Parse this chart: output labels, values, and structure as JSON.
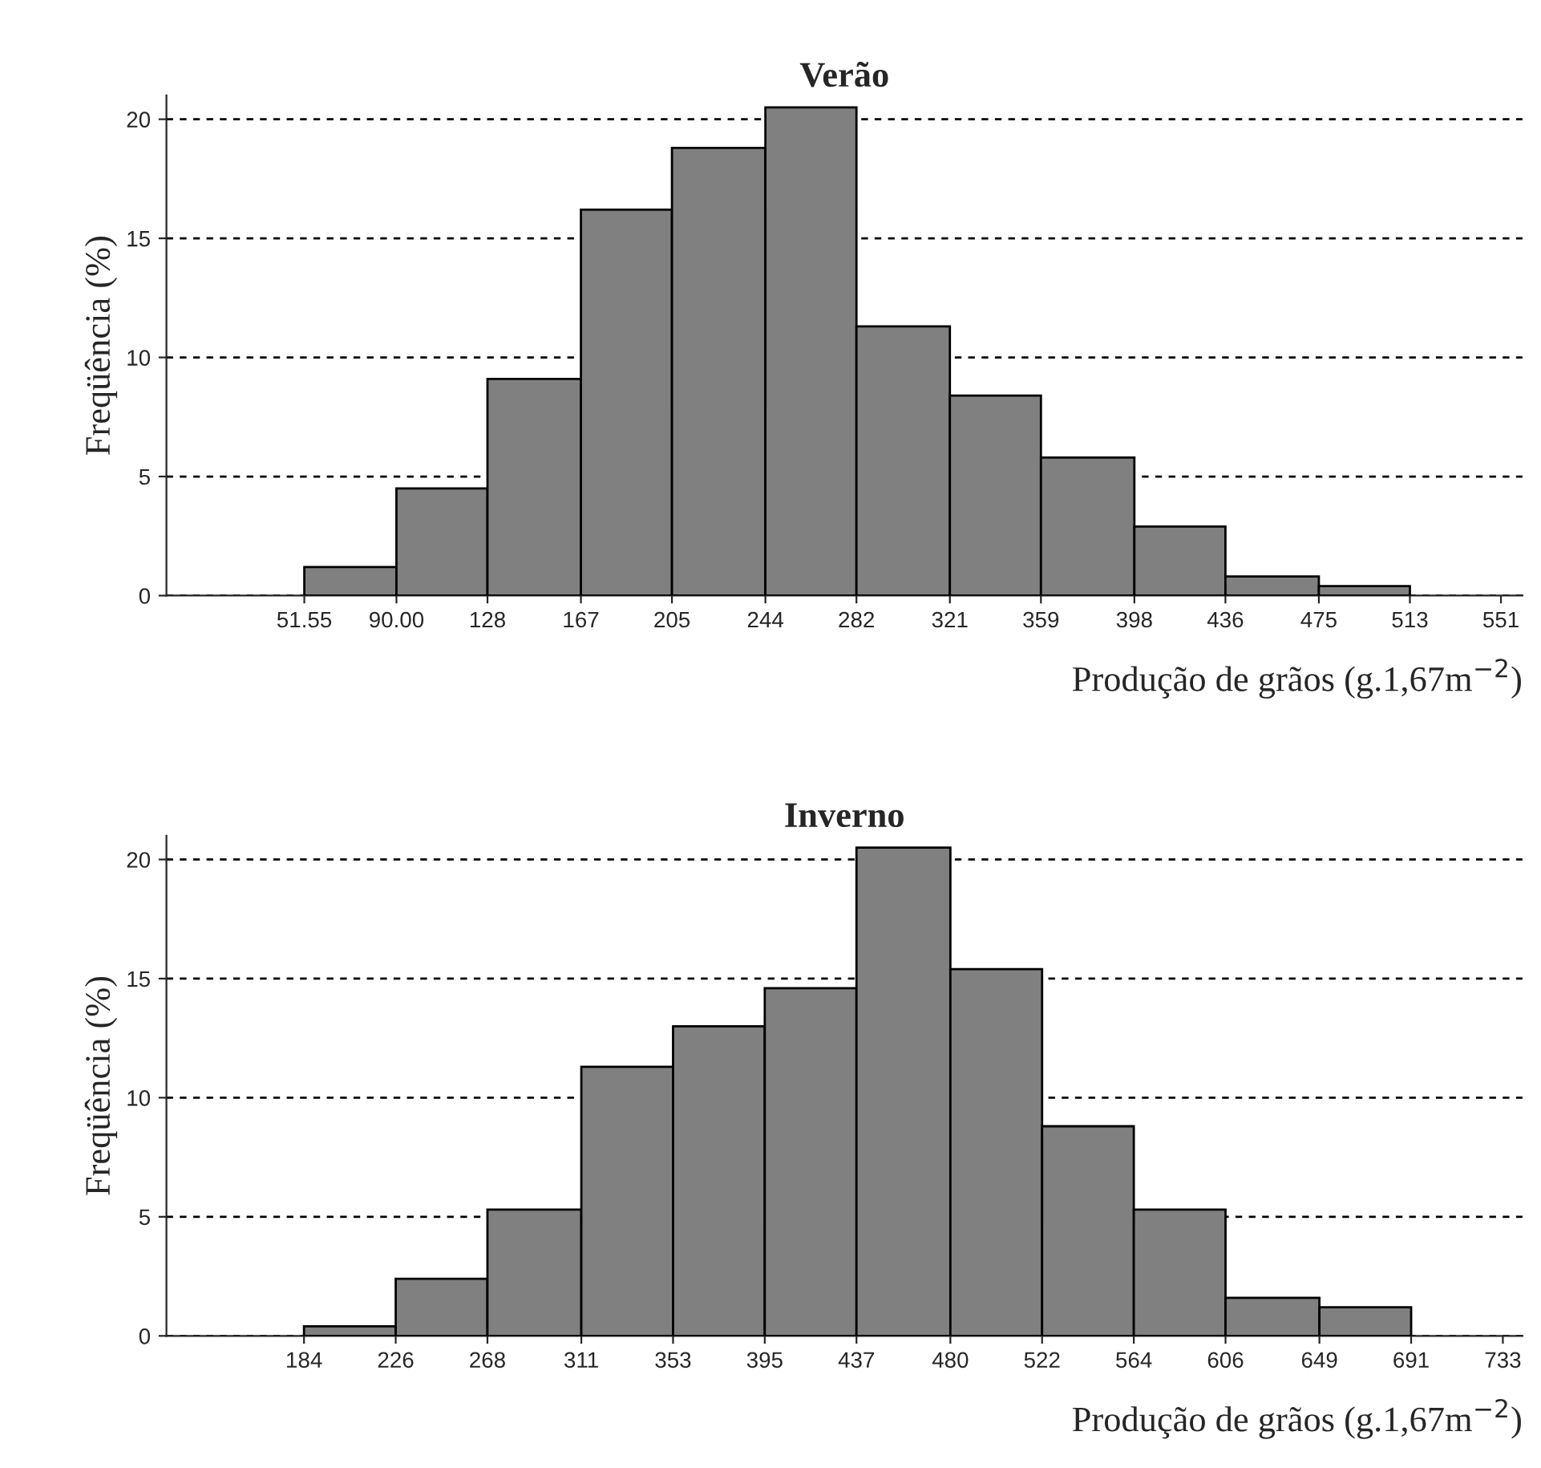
{
  "chart_data": [
    {
      "type": "histogram",
      "title": "Verão",
      "xlabel": "Produção de grãos (g.1,67m$^{−2}$)",
      "ylabel": "Freqüência (%)",
      "bins": [
        51.55,
        90.0,
        128,
        167,
        205,
        244,
        282,
        321,
        359,
        398,
        436,
        475,
        513
      ],
      "values": [
        1.2,
        4.5,
        9.1,
        16.2,
        18.8,
        20.5,
        11.3,
        8.4,
        5.8,
        2.9,
        0.8,
        0.4
      ],
      "color": "#808080",
      "xlim": [
        -6,
        560
      ],
      "ylim": [
        0,
        21
      ],
      "xticks": [
        {
          "value": 51.55,
          "label": "51.55"
        },
        {
          "value": 90.0,
          "label": "90.00"
        },
        128,
        167,
        205,
        244,
        282,
        321,
        359,
        398,
        436,
        475,
        513,
        551
      ],
      "yticks": [
        0,
        5,
        10,
        15,
        20
      ],
      "grid": "y",
      "line_style": "dashed"
    },
    {
      "type": "histogram",
      "title": "Inverno",
      "xlabel": "Produção de grãos (g.1,67m$^{−2}$)",
      "ylabel": "Freqüência (%)",
      "bins": [
        184,
        226,
        268,
        311,
        353,
        395,
        437,
        480,
        522,
        564,
        606,
        649,
        691
      ],
      "values": [
        0.4,
        2.4,
        5.3,
        11.3,
        13.0,
        14.6,
        20.5,
        15.4,
        8.8,
        5.3,
        1.6,
        1.2
      ],
      "color": "#808080",
      "xlim": [
        121,
        742
      ],
      "ylim": [
        0,
        21
      ],
      "xticks": [
        184,
        226,
        268,
        311,
        353,
        395,
        437,
        480,
        522,
        564,
        606,
        649,
        691,
        733
      ],
      "yticks": [
        0,
        5,
        10,
        15,
        20
      ],
      "grid": "y",
      "line_style": "dashed"
    }
  ]
}
